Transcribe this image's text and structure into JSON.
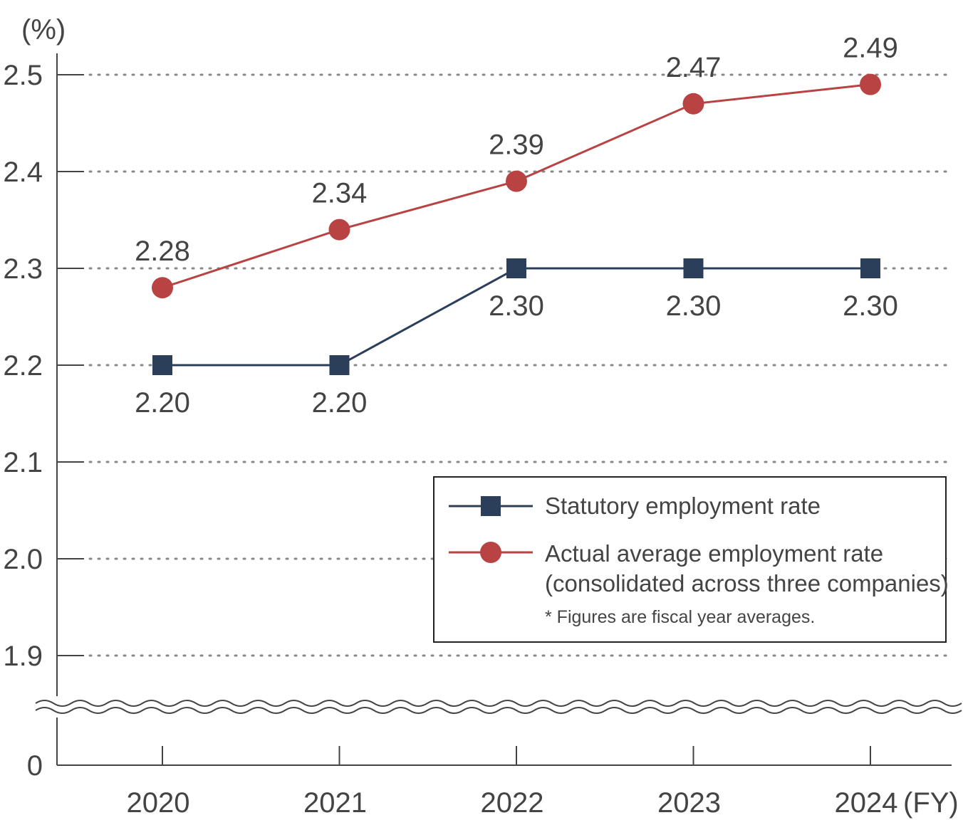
{
  "chart_data": {
    "type": "line",
    "title": "",
    "ylabel": "(%)",
    "xlabel": "(FY)",
    "categories": [
      "2020",
      "2021",
      "2022",
      "2023",
      "2024"
    ],
    "y_ticks": [
      {
        "value": 2.5,
        "label": "2.5"
      },
      {
        "value": 2.4,
        "label": "2.4"
      },
      {
        "value": 2.3,
        "label": "2.3"
      },
      {
        "value": 2.2,
        "label": "2.2"
      },
      {
        "value": 2.1,
        "label": "2.1"
      },
      {
        "value": 2.0,
        "label": "2.0"
      },
      {
        "value": 1.9,
        "label": "1.9"
      },
      {
        "value": 0,
        "label": "0"
      }
    ],
    "ylim": [
      1.9,
      2.5
    ],
    "axis_break": true,
    "grid": true,
    "series": [
      {
        "name": "Statutory employment rate",
        "marker": "square",
        "color": "#2b3e5a",
        "label_position": "below",
        "values": [
          2.2,
          2.2,
          2.3,
          2.3,
          2.3
        ],
        "labels": [
          "2.20",
          "2.20",
          "2.30",
          "2.30",
          "2.30"
        ]
      },
      {
        "name": "Actual average employment rate",
        "name_line2": "(consolidated across three companies)",
        "marker": "circle",
        "color": "#b94242",
        "label_position": "above",
        "values": [
          2.28,
          2.34,
          2.39,
          2.47,
          2.49
        ],
        "labels": [
          "2.28",
          "2.34",
          "2.39",
          "2.47",
          "2.49"
        ]
      }
    ],
    "legend_position": "bottom-right",
    "note": "* Figures are fiscal year averages."
  }
}
